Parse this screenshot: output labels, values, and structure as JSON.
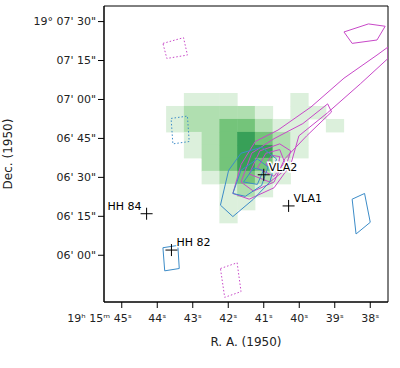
{
  "chart_data": {
    "type": "contour",
    "x_label": "R. A. (1950)",
    "y_label": "Dec. (1950)",
    "xlim": [
      45.5,
      37.5
    ],
    "ylim": [
      342,
      456
    ],
    "xticks": [
      {
        "value": 45,
        "label": "19ʰ 15ᵐ 45ˢ"
      },
      {
        "value": 44,
        "label": "44ˢ"
      },
      {
        "value": 43,
        "label": "43ˢ"
      },
      {
        "value": 42,
        "label": "42ˢ"
      },
      {
        "value": 41,
        "label": "41ˢ"
      },
      {
        "value": 40,
        "label": "40ˢ"
      },
      {
        "value": 39,
        "label": "39ˢ"
      },
      {
        "value": 38,
        "label": "38ˢ"
      }
    ],
    "yticks": [
      {
        "value": 450,
        "label": "19° 07' 30\""
      },
      {
        "value": 435,
        "label": "07' 15\""
      },
      {
        "value": 420,
        "label": "07' 00\""
      },
      {
        "value": 405,
        "label": "06' 45\""
      },
      {
        "value": 390,
        "label": "06' 30\""
      },
      {
        "value": 375,
        "label": "06' 15\""
      },
      {
        "value": 360,
        "label": "06' 00\""
      }
    ],
    "green_emission": {
      "cell_size": [
        0.5,
        5
      ],
      "colors": [
        "#dcf0dc",
        "#b0dfb0",
        "#74c47a",
        "#38a058"
      ],
      "cells": [
        [
          43,
          420,
          1
        ],
        [
          42.5,
          420,
          1
        ],
        [
          42,
          420,
          1
        ],
        [
          40,
          420,
          1
        ],
        [
          43.5,
          415,
          1
        ],
        [
          43,
          415,
          2
        ],
        [
          42.5,
          415,
          2
        ],
        [
          42,
          415,
          2
        ],
        [
          41.5,
          415,
          2
        ],
        [
          41,
          415,
          1
        ],
        [
          40,
          415,
          1
        ],
        [
          39.5,
          415,
          1
        ],
        [
          43.5,
          410,
          1
        ],
        [
          43,
          410,
          2
        ],
        [
          42.5,
          410,
          2
        ],
        [
          42,
          410,
          3
        ],
        [
          41.5,
          410,
          3
        ],
        [
          41,
          410,
          2
        ],
        [
          40.5,
          410,
          1
        ],
        [
          40,
          410,
          1
        ],
        [
          39,
          410,
          1
        ],
        [
          43,
          405,
          1
        ],
        [
          42.5,
          405,
          2
        ],
        [
          42,
          405,
          3
        ],
        [
          41.5,
          405,
          4
        ],
        [
          41,
          405,
          3
        ],
        [
          40.5,
          405,
          2
        ],
        [
          40,
          405,
          1
        ],
        [
          43,
          400,
          1
        ],
        [
          42.5,
          400,
          2
        ],
        [
          42,
          400,
          3
        ],
        [
          41.5,
          400,
          4
        ],
        [
          41,
          400,
          4
        ],
        [
          40.5,
          400,
          2
        ],
        [
          40,
          400,
          1
        ],
        [
          42.5,
          395,
          2
        ],
        [
          42,
          395,
          3
        ],
        [
          41.5,
          395,
          4
        ],
        [
          41,
          395,
          3
        ],
        [
          40.5,
          395,
          1
        ],
        [
          42.5,
          390,
          1
        ],
        [
          42,
          390,
          2
        ],
        [
          41.5,
          390,
          3
        ],
        [
          41,
          390,
          2
        ],
        [
          40.5,
          390,
          1
        ],
        [
          42,
          385,
          1
        ],
        [
          41.5,
          385,
          2
        ],
        [
          41,
          385,
          1
        ],
        [
          42,
          380,
          1
        ],
        [
          41.5,
          380,
          1
        ],
        [
          42,
          375,
          1
        ]
      ]
    },
    "contours": [
      {
        "color": "#c848c8",
        "line_style": "solid",
        "points": [
          [
            41.87,
            383.8
          ],
          [
            41.64,
            394.9
          ],
          [
            41.24,
            403.8
          ],
          [
            40.6,
            408.2
          ],
          [
            39.67,
            417.1
          ],
          [
            38.74,
            428.2
          ],
          [
            37.81,
            437.1
          ],
          [
            37.5,
            440.2
          ],
          [
            37.5,
            435.8
          ],
          [
            38.28,
            426
          ],
          [
            39.2,
            414.9
          ],
          [
            40.01,
            406
          ],
          [
            40.24,
            394.9
          ],
          [
            40.71,
            386
          ],
          [
            41.41,
            381.6
          ],
          [
            41.87,
            383.8
          ]
        ]
      },
      {
        "color": "#c848c8",
        "line_style": "solid",
        "points": [
          [
            41.64,
            388.2
          ],
          [
            41.34,
            399.3
          ],
          [
            40.71,
            404.9
          ],
          [
            39.9,
            410.7
          ],
          [
            39.2,
            418.3
          ],
          [
            39.09,
            415.2
          ],
          [
            39.79,
            406
          ],
          [
            40.41,
            397.1
          ],
          [
            40.71,
            388.2
          ],
          [
            41.29,
            384.7
          ],
          [
            41.64,
            388.2
          ]
        ]
      },
      {
        "color": "#c848c8",
        "line_style": "solid",
        "points": [
          [
            41.41,
            391.3
          ],
          [
            41.11,
            400.2
          ],
          [
            40.55,
            402.9
          ],
          [
            40.24,
            400.2
          ],
          [
            40.41,
            392.7
          ],
          [
            40.83,
            388.2
          ],
          [
            41.41,
            391.3
          ]
        ]
      },
      {
        "color": "#c848c8",
        "line_style": "solid",
        "points": [
          [
            41.18,
            393.6
          ],
          [
            40.94,
            399.3
          ],
          [
            40.55,
            400.7
          ],
          [
            40.41,
            395.8
          ],
          [
            40.71,
            390.4
          ],
          [
            41.18,
            393.6
          ]
        ]
      },
      {
        "color": "#c848c8",
        "line_style": "solid",
        "points": [
          [
            40.94,
            394.9
          ],
          [
            40.78,
            398.5
          ],
          [
            40.55,
            398
          ],
          [
            40.6,
            393.6
          ],
          [
            40.94,
            394.9
          ]
        ]
      },
      {
        "color": "#c848c8",
        "line_style": "solid",
        "points": [
          [
            38.74,
            446
          ],
          [
            38.05,
            449.1
          ],
          [
            37.58,
            448.2
          ],
          [
            37.81,
            442.9
          ],
          [
            38.51,
            441.6
          ],
          [
            38.74,
            446
          ]
        ]
      },
      {
        "color": "#c848c8",
        "line_style": "dotted",
        "points": [
          [
            43.84,
            441.6
          ],
          [
            43.26,
            443.8
          ],
          [
            43.15,
            437.1
          ],
          [
            43.73,
            435.8
          ],
          [
            43.84,
            441.6
          ]
        ]
      },
      {
        "color": "#c848c8",
        "line_style": "dotted",
        "points": [
          [
            42.22,
            354.9
          ],
          [
            41.75,
            357.1
          ],
          [
            41.64,
            346
          ],
          [
            42.1,
            343.8
          ],
          [
            42.22,
            354.9
          ]
        ]
      },
      {
        "color": "#3c8cc8",
        "line_style": "solid",
        "points": [
          [
            42.22,
            379.3
          ],
          [
            41.99,
            392.7
          ],
          [
            41.64,
            399.3
          ],
          [
            41.06,
            401.6
          ],
          [
            40.64,
            397.1
          ],
          [
            40.83,
            388.2
          ],
          [
            41.29,
            381.6
          ],
          [
            41.87,
            374.9
          ],
          [
            42.22,
            379.3
          ]
        ]
      },
      {
        "color": "#3c8cc8",
        "line_style": "solid",
        "points": [
          [
            41.87,
            383.8
          ],
          [
            41.64,
            392.7
          ],
          [
            41.18,
            397.1
          ],
          [
            40.88,
            394
          ],
          [
            41.06,
            386.9
          ],
          [
            41.52,
            382.7
          ],
          [
            41.87,
            383.8
          ]
        ]
      },
      {
        "color": "#3c8cc8",
        "line_style": "solid",
        "points": [
          [
            41.57,
            388.2
          ],
          [
            41.29,
            393.6
          ],
          [
            41.01,
            392.7
          ],
          [
            41.18,
            387.3
          ],
          [
            41.57,
            388.2
          ]
        ]
      },
      {
        "color": "#3c8cc8",
        "line_style": "solid",
        "points": [
          [
            38.51,
            381.6
          ],
          [
            38.16,
            383.8
          ],
          [
            38,
            372.7
          ],
          [
            38.4,
            368.2
          ],
          [
            38.51,
            381.6
          ]
        ]
      },
      {
        "color": "#3c8cc8",
        "line_style": "solid",
        "points": [
          [
            43.84,
            362.9
          ],
          [
            43.42,
            363.8
          ],
          [
            43.38,
            354.9
          ],
          [
            43.79,
            354
          ],
          [
            43.84,
            362.9
          ]
        ]
      },
      {
        "color": "#3c8cc8",
        "line_style": "dotted",
        "points": [
          [
            43.61,
            412.7
          ],
          [
            43.15,
            413.6
          ],
          [
            43.1,
            403.8
          ],
          [
            43.56,
            402.9
          ],
          [
            43.61,
            412.7
          ]
        ]
      }
    ],
    "sources": [
      {
        "name": "HH 84",
        "x": 44.3,
        "y": 376,
        "marker": "cross"
      },
      {
        "name": "HH 82",
        "x": 43.6,
        "y": 362,
        "marker": "cross"
      },
      {
        "name": "VLA2",
        "x": 41.0,
        "y": 391,
        "marker": "cross"
      },
      {
        "name": "VLA1",
        "x": 40.3,
        "y": 379,
        "marker": "cross"
      }
    ]
  }
}
